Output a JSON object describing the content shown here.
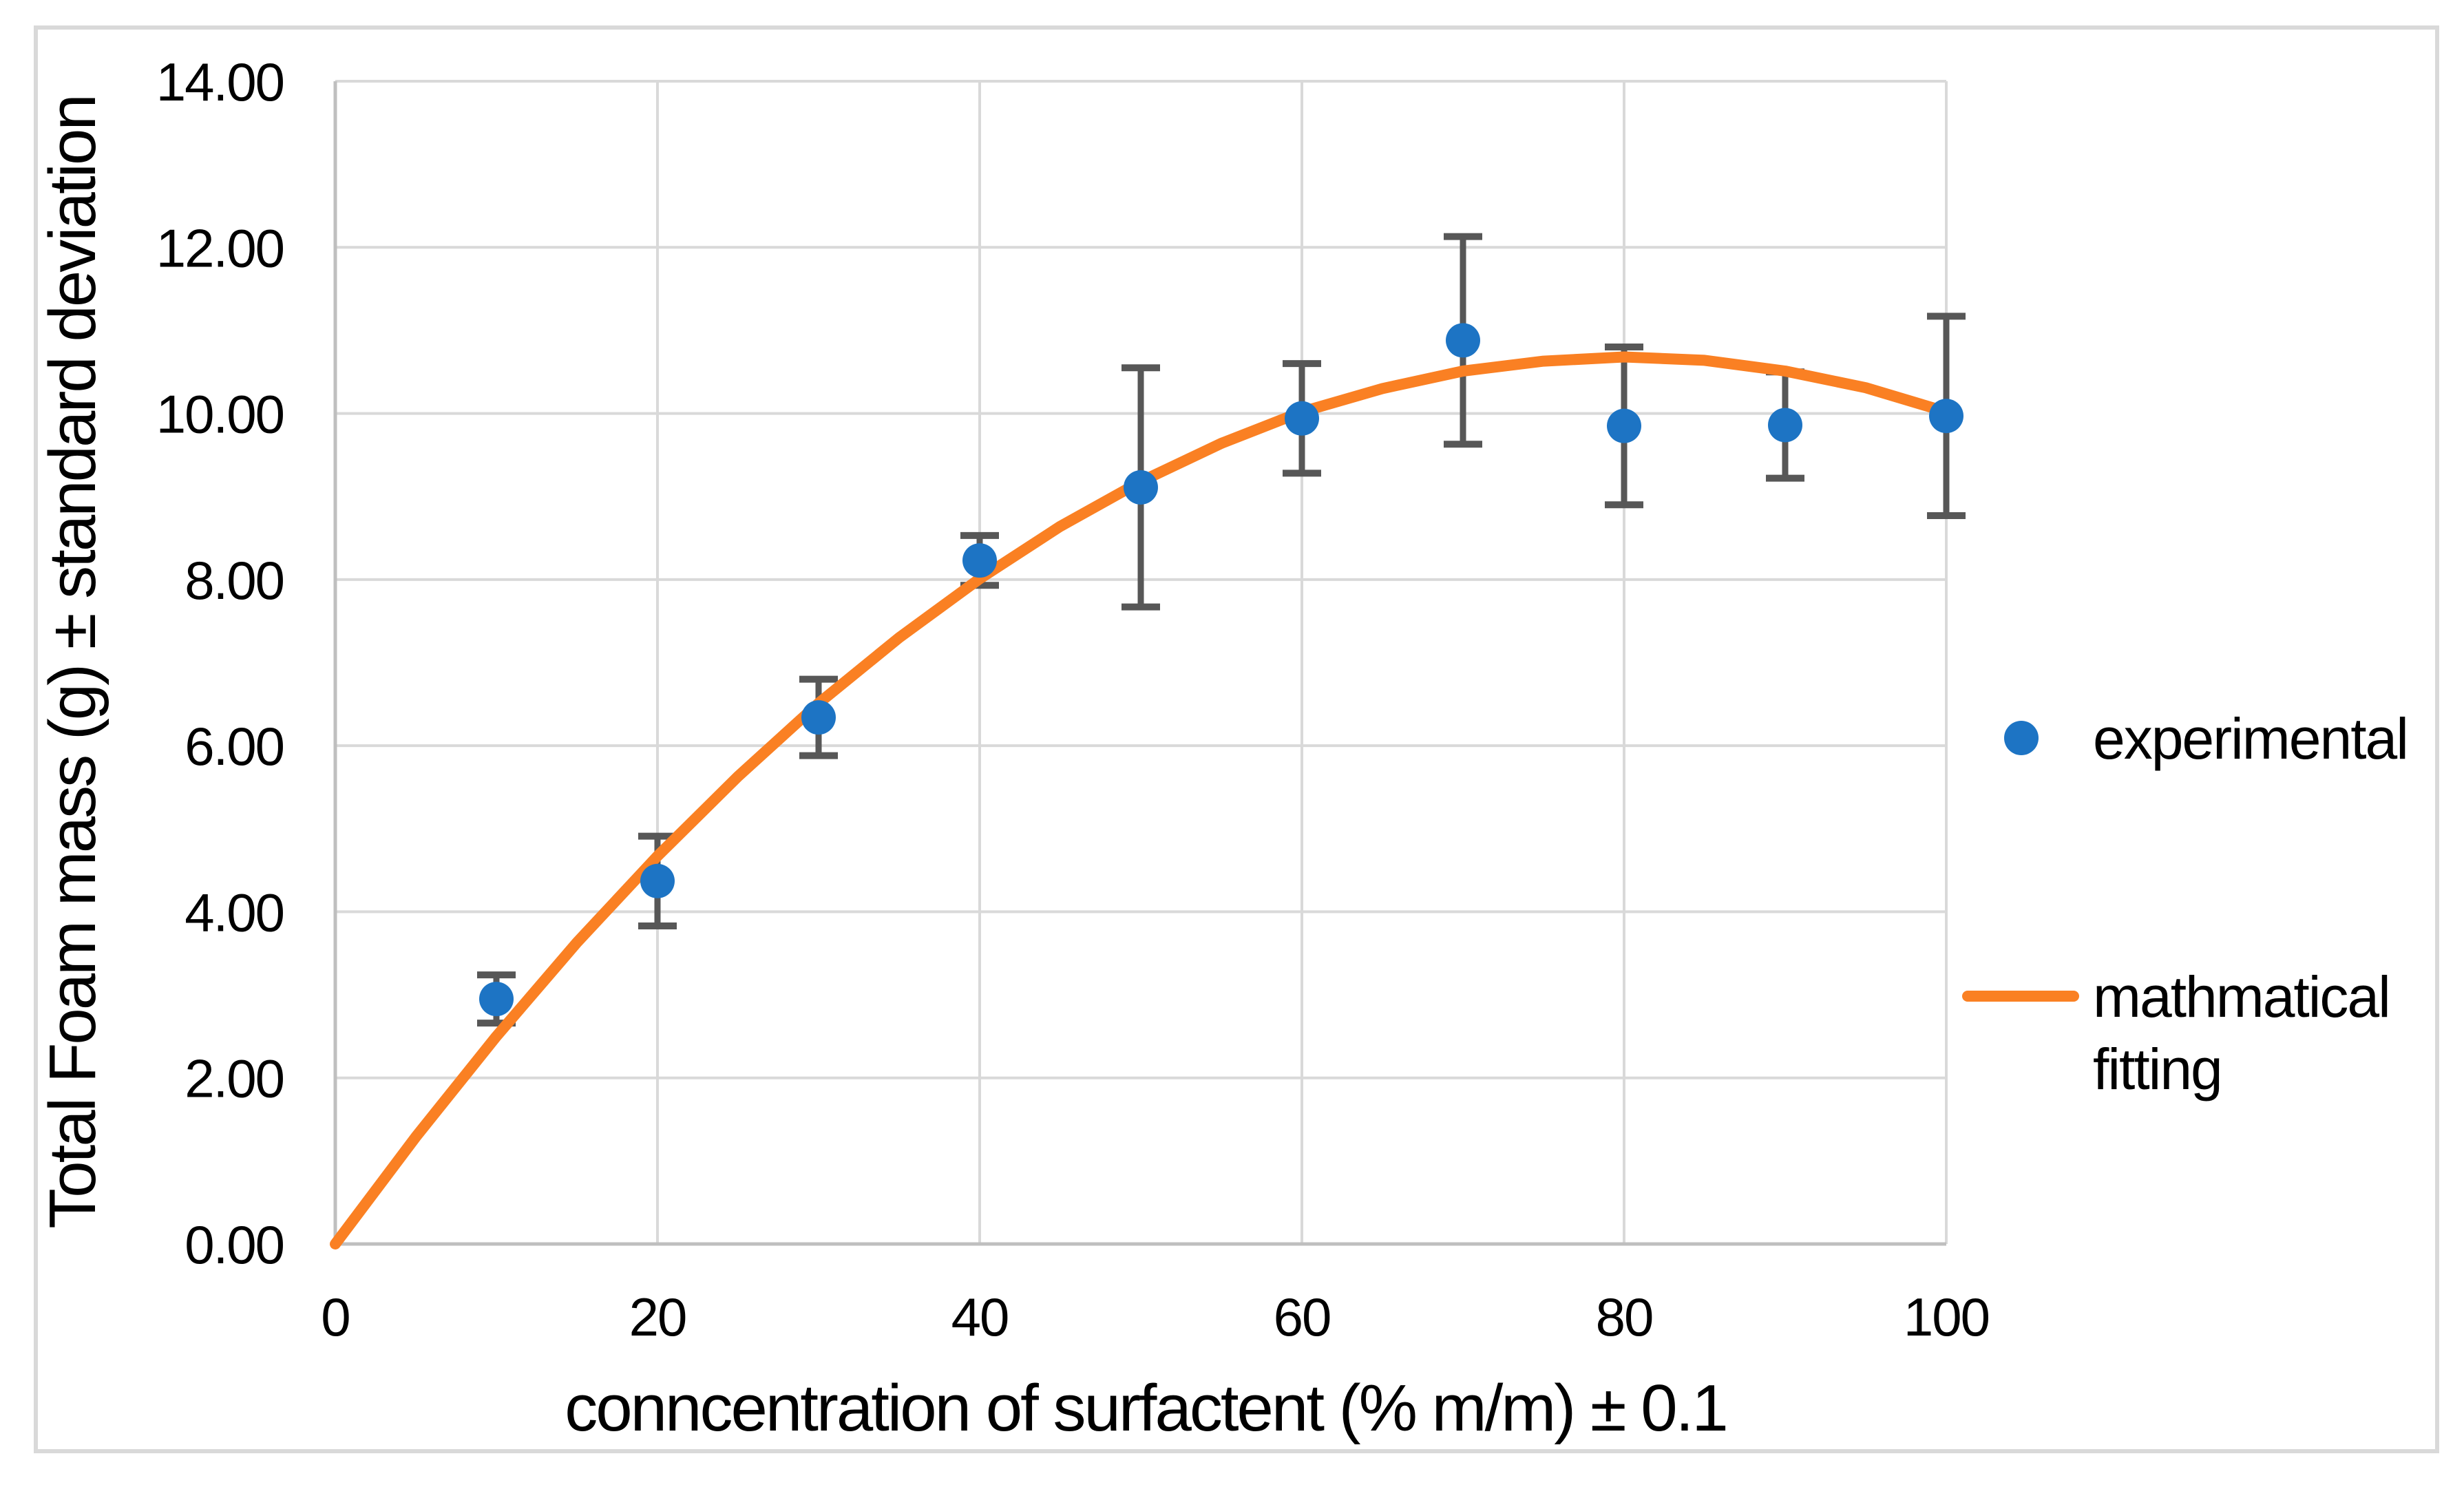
{
  "chart_data": {
    "type": "scatter",
    "title": "",
    "xlabel": "conncentration of surfactent (% m/m) ± 0.1",
    "ylabel": "Total Foam mass (g) ± standard deviation",
    "xlim": [
      0,
      100
    ],
    "ylim": [
      0,
      14
    ],
    "grid": true,
    "x_ticks": [
      "0",
      "20",
      "40",
      "60",
      "80",
      "100"
    ],
    "y_ticks": [
      "0.00",
      "2.00",
      "4.00",
      "6.00",
      "8.00",
      "10.00",
      "12.00",
      "14.00"
    ],
    "legend_position": "right-outside",
    "series": [
      {
        "name": "experimental",
        "type": "scatter-with-error-bars",
        "color": "#1D74C4",
        "error_bar_color": "#575757",
        "x": [
          10,
          20,
          30,
          40,
          50,
          60,
          70,
          80,
          90,
          100
        ],
        "y": [
          2.95,
          4.37,
          6.34,
          8.23,
          9.11,
          9.94,
          10.88,
          9.85,
          9.86,
          9.97
        ],
        "yerr": [
          0.29,
          0.54,
          0.46,
          0.3,
          1.44,
          0.66,
          1.25,
          0.95,
          0.64,
          1.2
        ]
      },
      {
        "name": "mathmatical fitting",
        "type": "line",
        "color": "#FA8023",
        "x": [
          0,
          5,
          10,
          15,
          20,
          25,
          30,
          35,
          40,
          45,
          50,
          55,
          60,
          65,
          70,
          75,
          80,
          85,
          90,
          95,
          100
        ],
        "y": [
          0.0,
          1.29,
          2.5,
          3.63,
          4.67,
          5.63,
          6.51,
          7.3,
          8.01,
          8.64,
          9.18,
          9.64,
          10.02,
          10.3,
          10.51,
          10.63,
          10.68,
          10.64,
          10.51,
          10.31,
          10.02
        ]
      }
    ]
  },
  "legend": {
    "items": [
      {
        "marker": "circle",
        "lines": [
          "experimental"
        ]
      },
      {
        "marker": "line",
        "lines": [
          "mathmatical",
          "fitting"
        ]
      }
    ]
  },
  "style": {
    "gridline_color": "#D9D9D9",
    "axis_color": "#BFBFBF",
    "border_color": "#D9D9D9",
    "text_color": "#000000"
  }
}
